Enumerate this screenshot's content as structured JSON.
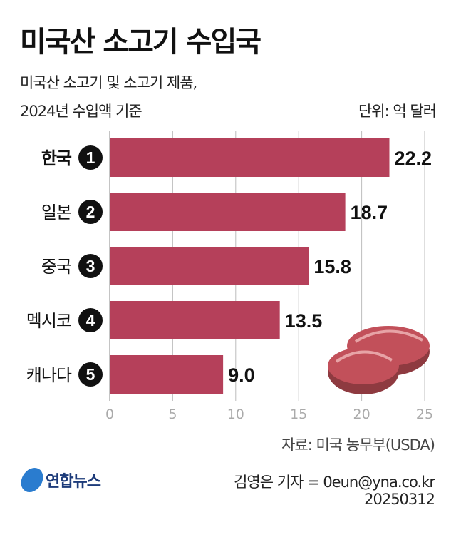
{
  "title": "미국산 소고기 수입국",
  "subtitle_line1": "미국산 소고기 및 소고기 제품,",
  "subtitle_line2": "2024년 수입액 기준",
  "unit": "단위: 억 달러",
  "source": "자료: 미국 농무부(USDA)",
  "credit": "김영은 기자 = 0eun@yna.co.kr",
  "date": "20250312",
  "logo": "연합뉴스",
  "colors": {
    "bar": "#b5405a",
    "rank_badge": "#111111",
    "grid": "#bdbdbd"
  },
  "chart_data": {
    "type": "bar",
    "orientation": "horizontal",
    "categories": [
      "한국",
      "일본",
      "중국",
      "멕시코",
      "캐나다"
    ],
    "ranks": [
      "1",
      "2",
      "3",
      "4",
      "5"
    ],
    "values": [
      22.2,
      18.7,
      15.8,
      13.5,
      9.0
    ],
    "value_labels": [
      "22.2",
      "18.7",
      "15.8",
      "13.5",
      "9.0"
    ],
    "xlim": [
      0,
      25
    ],
    "xticks": [
      "0",
      "5",
      "10",
      "15",
      "20",
      "25"
    ],
    "grid": true,
    "highlight_category": "한국"
  }
}
